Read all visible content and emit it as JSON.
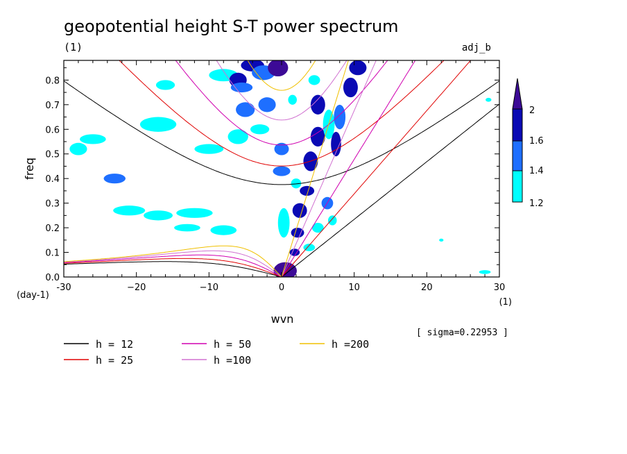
{
  "chart_data": {
    "type": "contour",
    "title": "geopotential height S-T power spectrum",
    "subtitle_left": "(1)",
    "subtitle_right": "adj_b",
    "xlabel": "wvn",
    "ylabel": "freq",
    "x_unit": "(1)",
    "y_unit": "(day-1)",
    "xlim": [
      -30,
      30
    ],
    "ylim": [
      0,
      0.88
    ],
    "x_ticks": [
      -30,
      -20,
      -10,
      0,
      10,
      20,
      30
    ],
    "x_tick_labels": [
      "-30",
      "−20",
      "−10",
      "0",
      "10",
      "20",
      "30"
    ],
    "y_ticks": [
      0.0,
      0.1,
      0.2,
      0.3,
      0.4,
      0.5,
      0.6,
      0.7,
      0.8
    ],
    "y_tick_labels": [
      "0.0",
      "0.1",
      "0.2",
      "0.3",
      "0.4",
      "0.5",
      "0.6",
      "0.7",
      "0.8"
    ],
    "sigma_note": "[ sigma=0.22953 ]",
    "colorbar": {
      "levels": [
        1.2,
        1.4,
        1.6,
        2
      ],
      "labels": [
        "1.2",
        "1.4",
        "1.6",
        "2"
      ],
      "colors": [
        "#00ffff",
        "#1e6fff",
        "#0a0ab4",
        "#3c0a96"
      ]
    },
    "dispersion_curves": [
      {
        "label": "h = 12",
        "color": "#000000"
      },
      {
        "label": "h = 25",
        "color": "#e00000"
      },
      {
        "label": "h = 50",
        "color": "#d000b0"
      },
      {
        "label": "h =100",
        "color": "#d070d0"
      },
      {
        "label": "h =200",
        "color": "#f0c000"
      }
    ],
    "significant_regions": [
      {
        "x": -26,
        "y": 0.56,
        "rx": 1.8,
        "ry": 0.02,
        "level": 1.2
      },
      {
        "x": -28,
        "y": 0.52,
        "rx": 1.2,
        "ry": 0.025,
        "level": 1.2
      },
      {
        "x": -23,
        "y": 0.4,
        "rx": 1.5,
        "ry": 0.02,
        "level": 1.4
      },
      {
        "x": -21,
        "y": 0.27,
        "rx": 2.2,
        "ry": 0.02,
        "level": 1.2
      },
      {
        "x": -17,
        "y": 0.25,
        "rx": 2.0,
        "ry": 0.02,
        "level": 1.2
      },
      {
        "x": -12,
        "y": 0.26,
        "rx": 2.5,
        "ry": 0.02,
        "level": 1.2
      },
      {
        "x": -13,
        "y": 0.2,
        "rx": 1.8,
        "ry": 0.015,
        "level": 1.2
      },
      {
        "x": -8,
        "y": 0.19,
        "rx": 1.8,
        "ry": 0.02,
        "level": 1.2
      },
      {
        "x": -17,
        "y": 0.62,
        "rx": 2.5,
        "ry": 0.03,
        "level": 1.2
      },
      {
        "x": -10,
        "y": 0.52,
        "rx": 2.0,
        "ry": 0.02,
        "level": 1.2
      },
      {
        "x": -6,
        "y": 0.57,
        "rx": 1.4,
        "ry": 0.03,
        "level": 1.2
      },
      {
        "x": -8,
        "y": 0.82,
        "rx": 2.0,
        "ry": 0.025,
        "level": 1.2
      },
      {
        "x": -16,
        "y": 0.78,
        "rx": 1.3,
        "ry": 0.02,
        "level": 1.2
      },
      {
        "x": -4,
        "y": 0.86,
        "rx": 1.6,
        "ry": 0.025,
        "level": 1.6
      },
      {
        "x": -6,
        "y": 0.8,
        "rx": 1.2,
        "ry": 0.03,
        "level": 1.6
      },
      {
        "x": -5.5,
        "y": 0.77,
        "rx": 1.5,
        "ry": 0.02,
        "level": 1.4
      },
      {
        "x": -5,
        "y": 0.68,
        "rx": 1.3,
        "ry": 0.03,
        "level": 1.4
      },
      {
        "x": -3,
        "y": 0.6,
        "rx": 1.3,
        "ry": 0.02,
        "level": 1.2
      },
      {
        "x": -2,
        "y": 0.7,
        "rx": 1.2,
        "ry": 0.03,
        "level": 1.4
      },
      {
        "x": -2.5,
        "y": 0.83,
        "rx": 1.6,
        "ry": 0.03,
        "level": 1.4
      },
      {
        "x": -0.5,
        "y": 0.85,
        "rx": 1.4,
        "ry": 0.035,
        "level": 2
      },
      {
        "x": 0,
        "y": 0.52,
        "rx": 1.0,
        "ry": 0.025,
        "level": 1.4
      },
      {
        "x": 0,
        "y": 0.43,
        "rx": 1.2,
        "ry": 0.02,
        "level": 1.4
      },
      {
        "x": 0.3,
        "y": 0.22,
        "rx": 0.8,
        "ry": 0.06,
        "level": 1.2
      },
      {
        "x": 0.5,
        "y": 0.025,
        "rx": 1.6,
        "ry": 0.035,
        "level": 2
      },
      {
        "x": 1.8,
        "y": 0.1,
        "rx": 0.7,
        "ry": 0.015,
        "level": 1.6
      },
      {
        "x": 2.2,
        "y": 0.18,
        "rx": 0.9,
        "ry": 0.02,
        "level": 1.6
      },
      {
        "x": 2.5,
        "y": 0.27,
        "rx": 1.0,
        "ry": 0.03,
        "level": 1.6
      },
      {
        "x": 3.5,
        "y": 0.35,
        "rx": 1.0,
        "ry": 0.02,
        "level": 1.6
      },
      {
        "x": 4.0,
        "y": 0.47,
        "rx": 1.0,
        "ry": 0.04,
        "level": 1.6
      },
      {
        "x": 5.0,
        "y": 0.57,
        "rx": 1.0,
        "ry": 0.04,
        "level": 1.6
      },
      {
        "x": 5.0,
        "y": 0.7,
        "rx": 1.0,
        "ry": 0.04,
        "level": 1.6
      },
      {
        "x": 4.5,
        "y": 0.8,
        "rx": 0.8,
        "ry": 0.02,
        "level": 1.2
      },
      {
        "x": 6.5,
        "y": 0.62,
        "rx": 0.8,
        "ry": 0.06,
        "level": 1.2
      },
      {
        "x": 7.5,
        "y": 0.54,
        "rx": 0.7,
        "ry": 0.05,
        "level": 1.6
      },
      {
        "x": 8.0,
        "y": 0.65,
        "rx": 0.8,
        "ry": 0.05,
        "level": 1.4
      },
      {
        "x": 9.5,
        "y": 0.77,
        "rx": 1.0,
        "ry": 0.04,
        "level": 1.6
      },
      {
        "x": 10.5,
        "y": 0.85,
        "rx": 1.2,
        "ry": 0.03,
        "level": 1.6
      },
      {
        "x": 3.8,
        "y": 0.12,
        "rx": 0.8,
        "ry": 0.015,
        "level": 1.2
      },
      {
        "x": 5.0,
        "y": 0.2,
        "rx": 0.8,
        "ry": 0.02,
        "level": 1.2
      },
      {
        "x": 6.3,
        "y": 0.3,
        "rx": 0.8,
        "ry": 0.025,
        "level": 1.4
      },
      {
        "x": 7.0,
        "y": 0.23,
        "rx": 0.6,
        "ry": 0.02,
        "level": 1.2
      },
      {
        "x": 2.0,
        "y": 0.38,
        "rx": 0.7,
        "ry": 0.02,
        "level": 1.2
      },
      {
        "x": 1.5,
        "y": 0.72,
        "rx": 0.6,
        "ry": 0.02,
        "level": 1.2
      },
      {
        "x": 28,
        "y": 0.02,
        "rx": 0.8,
        "ry": 0.008,
        "level": 1.2
      },
      {
        "x": 22,
        "y": 0.15,
        "rx": 0.3,
        "ry": 0.006,
        "level": 1.2
      },
      {
        "x": 28.5,
        "y": 0.72,
        "rx": 0.4,
        "ry": 0.008,
        "level": 1.2
      }
    ]
  }
}
